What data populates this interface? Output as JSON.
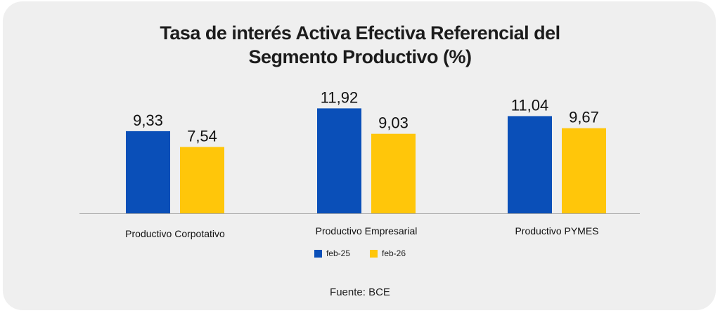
{
  "chart_data": {
    "type": "bar",
    "title_lines": [
      "Tasa de interés Activa Efectiva Referencial del",
      "Segmento Productivo (%)"
    ],
    "categories": [
      "Productivo Corpotativo",
      "Productivo Empresarial",
      "Productivo PYMES"
    ],
    "series": [
      {
        "name": "feb-25",
        "values": [
          9.33,
          11.92,
          11.04
        ],
        "labels": [
          "9,33",
          "11,92",
          "11,04"
        ],
        "color": "#0a4fb8"
      },
      {
        "name": "feb-26",
        "values": [
          7.54,
          9.03,
          9.67
        ],
        "labels": [
          "7,54",
          "9,03",
          "9,67"
        ],
        "color": "#ffc60a"
      }
    ],
    "ylim": [
      0,
      13
    ],
    "grid": false,
    "legend_position": "bottom",
    "source": "Fuente: BCE"
  }
}
